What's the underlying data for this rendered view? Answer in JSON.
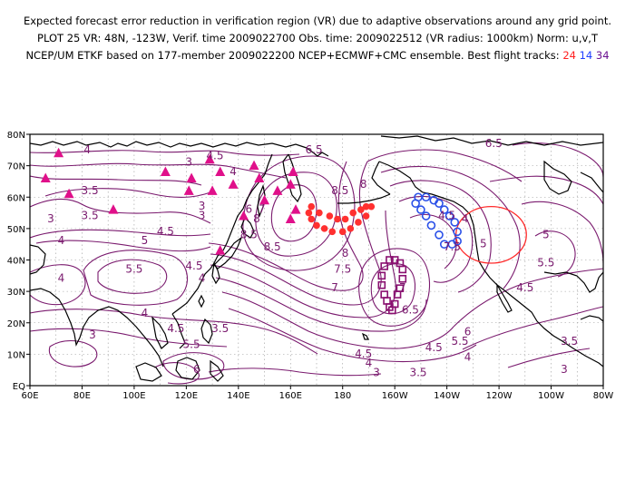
{
  "title": {
    "line1": "Expected forecast error reduction in verification region (VR) due to adaptive observations around any grid point.",
    "line2": "PLOT 25 VR: 48N, -123W, Verif. time 2009022700 Obs. time: 2009022512 (VR radius: 1000km) Norm: u,v,T",
    "line3_prefix": "NCEP/UM ETKF based on 177-member 2009022200 NCEP+ECMWF+CMC ensemble. Best flight tracks: ",
    "track_24": "24",
    "track_14": "14",
    "track_34": "34"
  },
  "axes": {
    "lon_ticks": [
      "60E",
      "80E",
      "100E",
      "120E",
      "140E",
      "160E",
      "180",
      "160W",
      "140W",
      "120W",
      "100W",
      "80W"
    ],
    "lat_ticks": [
      "EQ",
      "10N",
      "20N",
      "30N",
      "40N",
      "50N",
      "60N",
      "70N",
      "80N"
    ]
  },
  "colors": {
    "contour": "#7a1a6e",
    "coast": "#000000",
    "track_24": "#ff3030",
    "track_14": "#2a50e8",
    "track_34": "#8a1070",
    "triangles": "#e0108a",
    "vr_circle": "#ff2a2a"
  },
  "contour_labels": [
    {
      "text": "4",
      "lon": 82,
      "lat": 74
    },
    {
      "text": "3.5",
      "lon": 83,
      "lat": 61
    },
    {
      "text": "3",
      "lon": 68,
      "lat": 52
    },
    {
      "text": "3.5",
      "lon": 83,
      "lat": 53
    },
    {
      "text": "4",
      "lon": 72,
      "lat": 45
    },
    {
      "text": "5",
      "lon": 104,
      "lat": 45
    },
    {
      "text": "4.5",
      "lon": 112,
      "lat": 48
    },
    {
      "text": "5.5",
      "lon": 100,
      "lat": 36
    },
    {
      "text": "4",
      "lon": 72,
      "lat": 33
    },
    {
      "text": "4.5",
      "lon": 123,
      "lat": 37
    },
    {
      "text": "4",
      "lon": 126,
      "lat": 33
    },
    {
      "text": "4",
      "lon": 104,
      "lat": 22
    },
    {
      "text": "3",
      "lon": 84,
      "lat": 15
    },
    {
      "text": "4.5",
      "lon": 116,
      "lat": 17
    },
    {
      "text": "5.5",
      "lon": 122,
      "lat": 12
    },
    {
      "text": "6",
      "lon": 124,
      "lat": 4
    },
    {
      "text": "3.5",
      "lon": 133,
      "lat": 17
    },
    {
      "text": "3",
      "lon": 121,
      "lat": 70
    },
    {
      "text": "4.5",
      "lon": 131,
      "lat": 72
    },
    {
      "text": "3",
      "lon": 126,
      "lat": 56
    },
    {
      "text": "3",
      "lon": 126,
      "lat": 53
    },
    {
      "text": "4",
      "lon": 138,
      "lat": 67
    },
    {
      "text": "6",
      "lon": 144,
      "lat": 55
    },
    {
      "text": "7",
      "lon": 149,
      "lat": 55
    },
    {
      "text": "8",
      "lon": 147,
      "lat": 52
    },
    {
      "text": "8.5",
      "lon": 144,
      "lat": 47
    },
    {
      "text": "8.5",
      "lon": 153,
      "lat": 43
    },
    {
      "text": "6.5",
      "lon": 169,
      "lat": 74
    },
    {
      "text": "8.5",
      "lon": 179,
      "lat": 61
    },
    {
      "text": "8",
      "lon": 188,
      "lat": 63
    },
    {
      "text": "8",
      "lon": 181,
      "lat": 41
    },
    {
      "text": "7.5",
      "lon": 180,
      "lat": 36
    },
    {
      "text": "7",
      "lon": 177,
      "lat": 30
    },
    {
      "text": "6.5",
      "lon": 206,
      "lat": 23
    },
    {
      "text": "7",
      "lon": 203,
      "lat": 30
    },
    {
      "text": "6",
      "lon": 228,
      "lat": 16
    },
    {
      "text": "5.5",
      "lon": 225,
      "lat": 13
    },
    {
      "text": "4.5",
      "lon": 215,
      "lat": 11
    },
    {
      "text": "4",
      "lon": 228,
      "lat": 8
    },
    {
      "text": "4.5",
      "lon": 188,
      "lat": 9
    },
    {
      "text": "4",
      "lon": 190,
      "lat": 6
    },
    {
      "text": "3",
      "lon": 193,
      "lat": 3
    },
    {
      "text": "3.5",
      "lon": 209,
      "lat": 3
    },
    {
      "text": "3",
      "lon": 265,
      "lat": 4
    },
    {
      "text": "3.5",
      "lon": 267,
      "lat": 13
    },
    {
      "text": "4",
      "lon": 227,
      "lat": 52
    },
    {
      "text": "4.5",
      "lon": 220,
      "lat": 53
    },
    {
      "text": "5",
      "lon": 234,
      "lat": 44
    },
    {
      "text": "7.5",
      "lon": 222,
      "lat": 43
    },
    {
      "text": "4.5",
      "lon": 250,
      "lat": 30
    },
    {
      "text": "5.5",
      "lon": 258,
      "lat": 38
    },
    {
      "text": "5",
      "lon": 258,
      "lat": 47
    },
    {
      "text": "4.5",
      "lon": 283,
      "lat": 64
    },
    {
      "text": "4",
      "lon": 292,
      "lat": 51
    },
    {
      "text": "4",
      "lon": 288,
      "lat": 31
    },
    {
      "text": "6.5",
      "lon": 238,
      "lat": 76
    },
    {
      "text": "5",
      "lon": 288,
      "lat": 69
    }
  ],
  "triangles_latlon": [
    [
      66,
      66
    ],
    [
      71,
      74
    ],
    [
      75,
      61
    ],
    [
      92,
      56
    ],
    [
      112,
      68
    ],
    [
      122,
      66
    ],
    [
      121,
      62
    ],
    [
      129,
      72
    ],
    [
      130,
      62
    ],
    [
      133,
      68
    ],
    [
      138,
      64
    ],
    [
      146,
      70
    ],
    [
      148,
      66
    ],
    [
      150,
      59
    ],
    [
      155,
      62
    ],
    [
      161,
      68
    ],
    [
      160,
      64
    ],
    [
      160,
      53
    ],
    [
      162,
      56
    ],
    [
      142,
      54
    ],
    [
      133,
      43
    ]
  ],
  "track_24_latlon": [
    [
      168,
      57
    ],
    [
      171,
      55
    ],
    [
      175,
      54
    ],
    [
      178,
      53
    ],
    [
      181,
      53
    ],
    [
      184,
      55
    ],
    [
      187,
      56
    ],
    [
      189,
      57
    ],
    [
      191,
      57
    ],
    [
      189,
      54
    ],
    [
      186,
      52
    ],
    [
      183,
      50
    ],
    [
      180,
      49
    ],
    [
      176,
      49
    ],
    [
      173,
      50
    ],
    [
      170,
      51
    ],
    [
      168,
      53
    ],
    [
      167,
      55
    ]
  ],
  "track_14_latlon": [
    [
      209,
      60
    ],
    [
      212,
      60
    ],
    [
      215,
      59
    ],
    [
      217,
      58
    ],
    [
      219,
      56
    ],
    [
      221,
      54
    ],
    [
      223,
      52
    ],
    [
      224,
      49
    ],
    [
      224,
      46
    ],
    [
      222,
      45
    ],
    [
      219,
      45
    ],
    [
      217,
      48
    ],
    [
      214,
      51
    ],
    [
      212,
      54
    ],
    [
      210,
      56
    ],
    [
      208,
      58
    ]
  ],
  "track_34_latlon": [
    [
      199,
      24
    ],
    [
      200,
      26
    ],
    [
      201,
      29
    ],
    [
      202,
      31
    ],
    [
      203,
      34
    ],
    [
      203,
      37
    ],
    [
      202,
      39
    ],
    [
      200,
      40
    ],
    [
      198,
      40
    ],
    [
      196,
      38
    ],
    [
      195,
      35
    ],
    [
      195,
      32
    ],
    [
      196,
      29
    ],
    [
      197,
      27
    ],
    [
      198,
      25
    ]
  ],
  "vr_circle": {
    "lon": 237,
    "lat": 48,
    "rlon": 13.5,
    "rlat": 9
  }
}
